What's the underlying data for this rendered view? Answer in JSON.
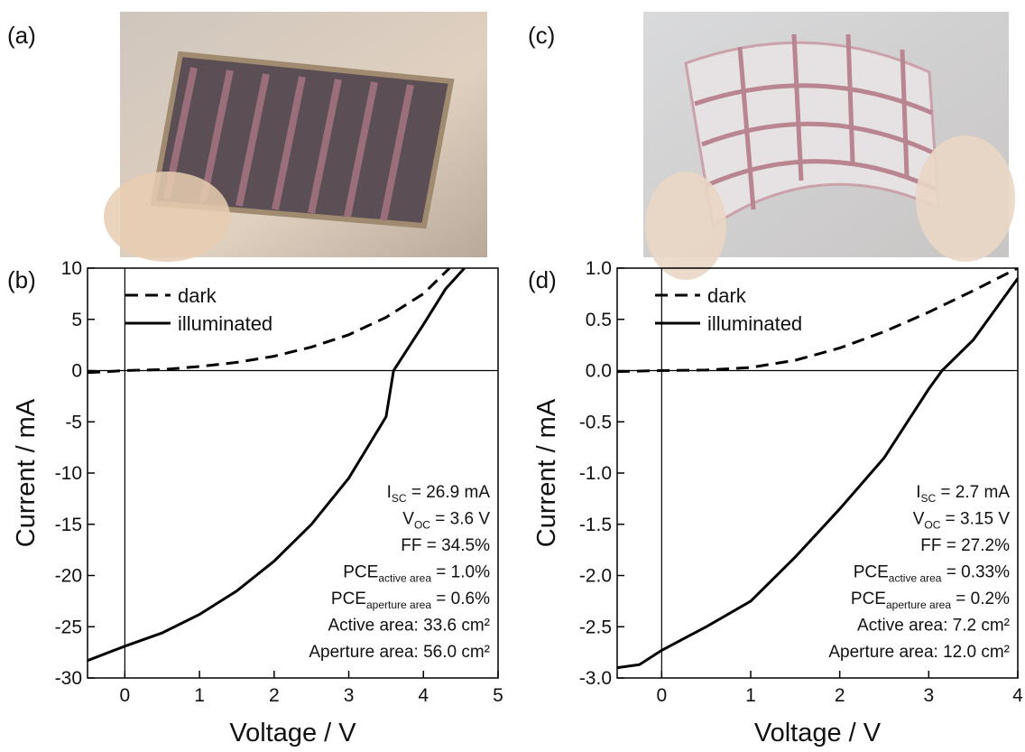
{
  "photos": [
    {
      "label": "(a)"
    },
    {
      "label": "(c)"
    }
  ],
  "chart_data": [
    {
      "type": "line",
      "panel_label": "(b)",
      "x_label": "Voltage / V",
      "y_label": "Current / mA",
      "xlim": [
        -0.5,
        5
      ],
      "xticks": [
        0,
        1,
        2,
        3,
        4,
        5
      ],
      "ylim": [
        -30,
        10
      ],
      "yticks": [
        -30,
        -25,
        -20,
        -15,
        -10,
        -5,
        0,
        5,
        10
      ],
      "legend": "top-left",
      "series": [
        {
          "name": "dark",
          "color": "#000000",
          "dash": true,
          "x": [
            -0.5,
            0,
            0.5,
            1,
            1.5,
            2,
            2.5,
            3,
            3.5,
            4,
            4.35
          ],
          "values": [
            -0.2,
            0,
            0.1,
            0.4,
            0.8,
            1.4,
            2.3,
            3.5,
            5.2,
            7.5,
            10
          ]
        },
        {
          "name": "illuminated",
          "color": "#000000",
          "dash": false,
          "x": [
            -0.5,
            0,
            0.5,
            1,
            1.5,
            2,
            2.5,
            3,
            3.5,
            3.6,
            4,
            4.3,
            4.55
          ],
          "values": [
            -28.3,
            -26.9,
            -25.6,
            -23.8,
            -21.5,
            -18.6,
            -15,
            -10.5,
            -4.5,
            0,
            4.5,
            8,
            10
          ]
        }
      ],
      "annotations": [
        {
          "text": "I",
          "sub": "SC",
          "rest": " = 26.9 mA"
        },
        {
          "text": "V",
          "sub": "OC",
          "rest": " = 3.6 V"
        },
        {
          "text": "FF = 34.5%"
        },
        {
          "text": "PCE",
          "sub": "active area",
          "rest": " = 1.0%"
        },
        {
          "text": "PCE",
          "sub": "aperture area",
          "rest": " = 0.6%"
        },
        {
          "text": "Active area: 33.6 cm²"
        },
        {
          "text": "Aperture area: 56.0 cm²"
        }
      ]
    },
    {
      "type": "line",
      "panel_label": "(d)",
      "x_label": "Voltage / V",
      "y_label": "Current / mA",
      "xlim": [
        -0.5,
        4
      ],
      "xticks": [
        0,
        1,
        2,
        3,
        4
      ],
      "ylim": [
        -3,
        1
      ],
      "yticks": [
        {
          "value": -3,
          "label": "-3.0"
        },
        -2.5,
        {
          "value": -2,
          "label": "-2.0"
        },
        -1.5,
        {
          "value": -1,
          "label": "-1.0"
        },
        -0.5,
        {
          "value": 0,
          "label": "0.0"
        },
        0.5,
        {
          "value": 1,
          "label": "1.0"
        }
      ],
      "legend": "top-left",
      "series": [
        {
          "name": "dark",
          "color": "#000000",
          "dash": true,
          "x": [
            -0.5,
            0,
            0.5,
            1,
            1.5,
            2,
            2.5,
            3,
            3.5,
            4
          ],
          "values": [
            -0.01,
            0,
            0.005,
            0.03,
            0.1,
            0.22,
            0.38,
            0.57,
            0.78,
            1
          ]
        },
        {
          "name": "illuminated",
          "color": "#000000",
          "dash": false,
          "x": [
            -0.5,
            -0.25,
            0,
            0.5,
            1,
            1.5,
            2,
            2.5,
            3,
            3.15,
            3.5,
            4
          ],
          "values": [
            -2.9,
            -2.87,
            -2.73,
            -2.5,
            -2.25,
            -1.82,
            -1.35,
            -0.85,
            -0.18,
            0,
            0.3,
            0.9
          ]
        }
      ],
      "annotations": [
        {
          "text": "I",
          "sub": "SC",
          "rest": " = 2.7 mA"
        },
        {
          "text": "V",
          "sub": "OC",
          "rest": " = 3.15 V"
        },
        {
          "text": "FF = 27.2%"
        },
        {
          "text": "PCE",
          "sub": "active area",
          "rest": " = 0.33%"
        },
        {
          "text": "PCE",
          "sub": "aperture area",
          "rest": " = 0.2%"
        },
        {
          "text": "Active area: 7.2 cm²"
        },
        {
          "text": "Aperture area: 12.0 cm²"
        }
      ]
    }
  ]
}
